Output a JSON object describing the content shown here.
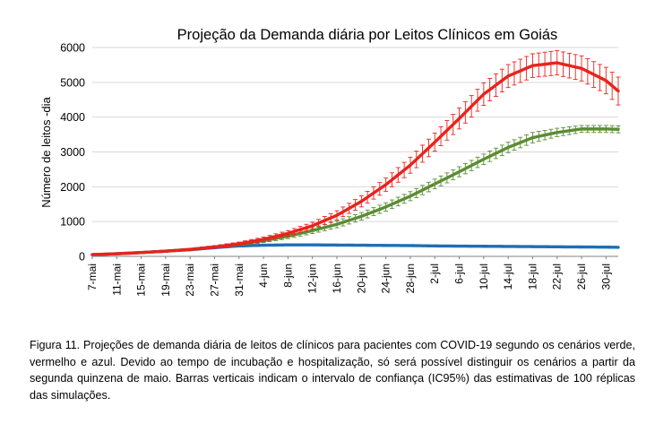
{
  "chart_data": {
    "type": "line",
    "title": "Projeção da Demanda diária por Leitos Clínicos em Goiás",
    "xlabel": "",
    "ylabel": "Número de leitos -dia",
    "ylim": [
      0,
      6000
    ],
    "yticks": [
      "0",
      "1000",
      "2000",
      "3000",
      "4000",
      "5000",
      "6000"
    ],
    "xtick_labels": [
      "7-mai",
      "11-mai",
      "15-mai",
      "19-mai",
      "23-mai",
      "27-mai",
      "31-mai",
      "4-jun",
      "8-jun",
      "12-jun",
      "16-jun",
      "20-jun",
      "24-jun",
      "28-jun",
      "2-jul",
      "6-jul",
      "10-jul",
      "14-jul",
      "18-jul",
      "22-jul",
      "26-jul",
      "30-jul"
    ],
    "x_days_from_7_mai": [
      0,
      4,
      8,
      12,
      16,
      20,
      24,
      28,
      32,
      36,
      40,
      44,
      48,
      52,
      56,
      60,
      64,
      68,
      72,
      76,
      80,
      84,
      86
    ],
    "grid": "horizontal",
    "error_bars": "IC95%",
    "series": [
      {
        "name": "vermelho",
        "color": "#e8231c",
        "values": [
          50,
          75,
          110,
          150,
          200,
          270,
          360,
          490,
          660,
          880,
          1180,
          1580,
          2060,
          2620,
          3280,
          3960,
          4660,
          5180,
          5480,
          5560,
          5400,
          5050,
          4750
        ],
        "error": [
          15,
          15,
          20,
          25,
          30,
          40,
          50,
          65,
          80,
          100,
          130,
          160,
          190,
          230,
          260,
          300,
          320,
          330,
          340,
          350,
          360,
          380,
          400
        ]
      },
      {
        "name": "verde",
        "color": "#5a8d32",
        "values": [
          50,
          75,
          110,
          150,
          200,
          270,
          350,
          450,
          580,
          740,
          920,
          1150,
          1420,
          1730,
          2080,
          2430,
          2790,
          3130,
          3410,
          3560,
          3660,
          3660,
          3650
        ],
        "error": [
          10,
          10,
          15,
          20,
          25,
          35,
          45,
          55,
          70,
          85,
          100,
          110,
          120,
          130,
          140,
          145,
          150,
          150,
          150,
          120,
          100,
          100,
          100
        ]
      },
      {
        "name": "azul",
        "color": "#1f6eb4",
        "values": [
          50,
          75,
          110,
          150,
          190,
          250,
          300,
          320,
          330,
          330,
          325,
          320,
          315,
          310,
          300,
          295,
          290,
          285,
          280,
          275,
          270,
          265,
          260
        ],
        "error": [
          0,
          0,
          0,
          0,
          0,
          0,
          0,
          0,
          0,
          0,
          0,
          0,
          0,
          0,
          0,
          0,
          0,
          0,
          0,
          0,
          0,
          0,
          0
        ]
      }
    ]
  },
  "caption": {
    "text": "Figura 11. Projeções de demanda diária de leitos de clínicos para pacientes com COVID-19 segundo os cenários verde, vermelho e azul. Devido ao tempo de incubação e hospitalização, só será possível distinguir os cenários a partir da segunda quinzena de maio. Barras verticais indicam o intervalo de confiança (IC95%) das estimativas de 100 réplicas das simulações."
  }
}
